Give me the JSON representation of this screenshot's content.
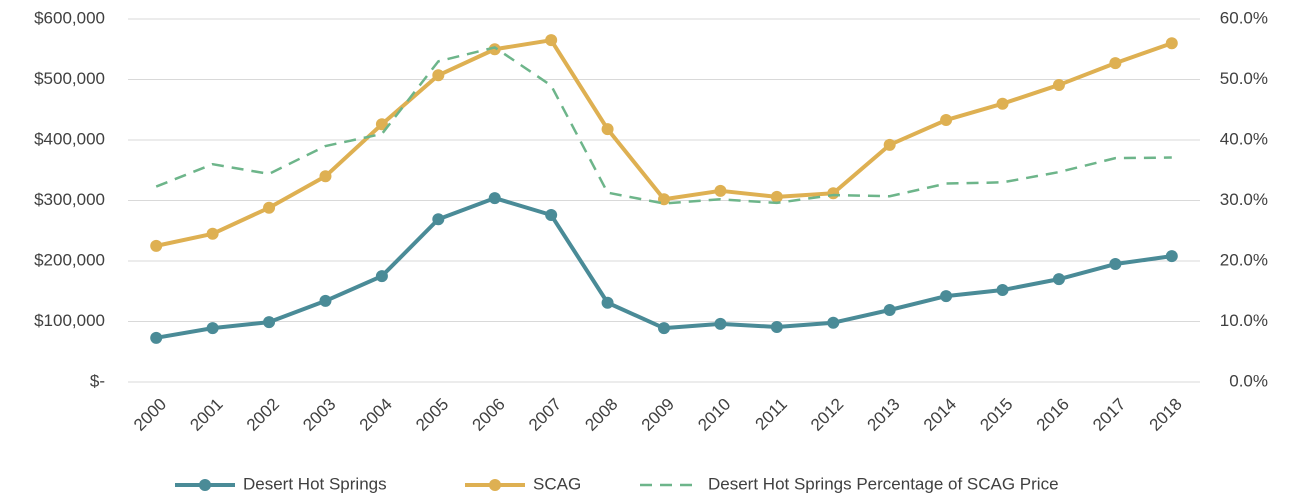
{
  "chart_data": {
    "type": "line",
    "categories": [
      "2000",
      "2001",
      "2002",
      "2003",
      "2004",
      "2005",
      "2006",
      "2007",
      "2008",
      "2009",
      "2010",
      "2011",
      "2012",
      "2013",
      "2014",
      "2015",
      "2016",
      "2017",
      "2018"
    ],
    "series": [
      {
        "name": "Desert Hot Springs",
        "color": "#4a8b97",
        "values": [
          73000,
          89000,
          99000,
          134000,
          175000,
          269000,
          304000,
          276000,
          131000,
          89000,
          96000,
          91000,
          98000,
          119000,
          142000,
          152000,
          170000,
          195000,
          208000
        ]
      },
      {
        "name": "SCAG",
        "color": "#deb052",
        "values": [
          225000,
          245000,
          288000,
          340000,
          426000,
          507000,
          550000,
          565000,
          418000,
          302000,
          316000,
          306000,
          312000,
          392000,
          433000,
          460000,
          491000,
          527000,
          560000
        ]
      },
      {
        "name": "Desert Hot Springs Percentage of SCAG Price",
        "color": "#6db58a",
        "axis": "y2",
        "dashed": true,
        "values": [
          32.3,
          36,
          34.4,
          39,
          41,
          53,
          55.3,
          49,
          31.3,
          29.5,
          30.2,
          29.6,
          30.9,
          30.7,
          32.8,
          33,
          34.7,
          37,
          37.1
        ]
      }
    ],
    "ylim": [
      0,
      600000
    ],
    "yticks": [
      {
        "value": 0,
        "label": "$-"
      },
      {
        "value": 100000,
        "label": "$100,000"
      },
      {
        "value": 200000,
        "label": "$200,000"
      },
      {
        "value": 300000,
        "label": "$300,000"
      },
      {
        "value": 400000,
        "label": "$400,000"
      },
      {
        "value": 500000,
        "label": "$500,000"
      },
      {
        "value": 600000,
        "label": "$600,000"
      }
    ],
    "y2lim": [
      0,
      60
    ],
    "y2ticks": [
      {
        "value": 0,
        "label": "0.0%"
      },
      {
        "value": 10,
        "label": "10.0%"
      },
      {
        "value": 20,
        "label": "20.0%"
      },
      {
        "value": 30,
        "label": "30.0%"
      },
      {
        "value": 40,
        "label": "40.0%"
      },
      {
        "value": 50,
        "label": "50.0%"
      },
      {
        "value": 60,
        "label": "60.0%"
      }
    ],
    "grid": true,
    "legend": "bottom"
  }
}
